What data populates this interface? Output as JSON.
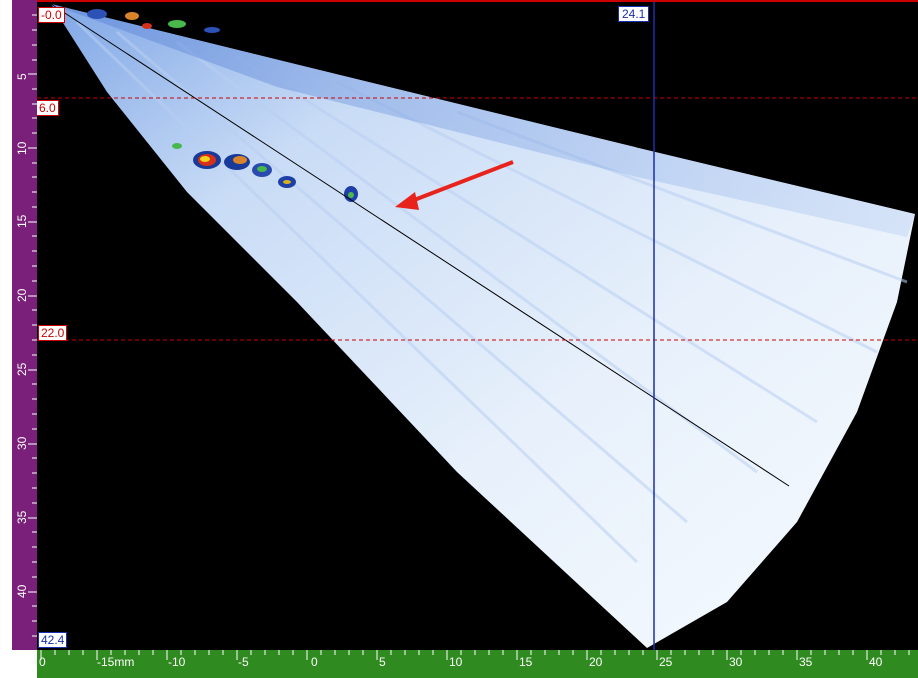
{
  "gates": {
    "top_label": "-0.0",
    "gate_a_label": "6.0",
    "gate_b_label": "22.0"
  },
  "cursor": {
    "label": "24.1"
  },
  "depth_ruler": {
    "bottom_label": "42.4",
    "ticks": [
      "5",
      "10",
      "15",
      "20",
      "25",
      "30",
      "35",
      "40"
    ]
  },
  "x_ruler": {
    "labels": [
      "0",
      "-15mm",
      "-10",
      "-5",
      "0",
      "5",
      "10",
      "15",
      "20",
      "25",
      "30",
      "35",
      "40"
    ]
  },
  "colors": {
    "depth_ruler_bg": "#7a1f7a",
    "x_ruler_bg": "#2f8a1f",
    "gate_line": "#cc0000",
    "cursor_line": "#1a2fb0",
    "scan_bg": "#000000"
  },
  "annotations": {
    "arrow": "red-arrow"
  }
}
